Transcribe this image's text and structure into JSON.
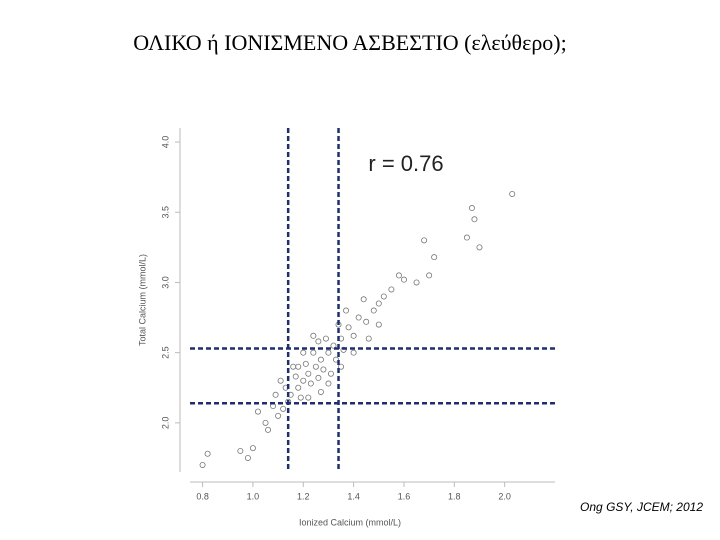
{
  "chart_data": {
    "type": "scatter",
    "title": "ΟΛΙΚΟ ή ΙΟΝΙΣΜΕΝΟ ΑΣΒΕΣΤΙΟ (ελεύθερο);",
    "annotation": "r = 0.76",
    "citation": "Ong  GSY, JCEM; 2012",
    "xlabel": "Ionized Calcium (mmol/L)",
    "ylabel": "Total Calcium (mmol/L)",
    "color": "#777777",
    "xlim": [
      0.75,
      2.2
    ],
    "ylim": [
      1.65,
      4.1
    ],
    "xticks": [
      0.8,
      {
        "value": 1,
        "label": "1.0"
      },
      1.2,
      1.4,
      1.6,
      1.8,
      {
        "value": 2,
        "label": "2.0"
      }
    ],
    "yticks": [
      {
        "value": 2,
        "label": "2.0"
      },
      2.5,
      {
        "value": 3,
        "label": "3.0"
      },
      3.5,
      {
        "value": 4,
        "label": "4.0"
      }
    ],
    "reference_lines": {
      "x": [
        1.14,
        1.34
      ],
      "y": [
        2.14,
        2.53
      ],
      "color": "#1f2f6e"
    },
    "x": [
      1.15,
      1.18,
      1.2,
      1.22,
      1.25,
      1.27,
      1.3,
      1.32,
      1.35,
      1.23,
      1.26,
      1.28,
      1.21,
      1.24,
      1.19,
      1.17,
      1.29,
      1.33,
      1.31,
      1.36,
      1.38,
      1.4,
      1.42,
      1.45,
      1.48,
      1.5,
      1.52,
      1.55,
      1.12,
      1.1,
      1.08,
      1.05,
      1.13,
      1.16,
      1.14,
      1.2,
      1.26,
      1.34,
      1.44,
      1.58,
      1.06,
      1.09,
      1.02,
      1.11,
      1.27,
      1.3,
      1.35,
      1.4,
      1.46,
      1.5,
      1.22,
      1.18,
      1.24,
      1.37,
      0.8,
      0.82,
      0.95,
      0.98,
      1.0,
      2.03,
      1.87,
      1.88,
      1.9,
      1.85,
      1.68,
      1.7,
      1.65,
      1.6,
      1.72
    ],
    "y": [
      2.2,
      2.25,
      2.3,
      2.35,
      2.4,
      2.45,
      2.5,
      2.55,
      2.6,
      2.28,
      2.32,
      2.38,
      2.42,
      2.5,
      2.18,
      2.33,
      2.6,
      2.45,
      2.35,
      2.52,
      2.68,
      2.62,
      2.75,
      2.72,
      2.8,
      2.85,
      2.9,
      2.95,
      2.1,
      2.05,
      2.12,
      2.0,
      2.25,
      2.4,
      2.15,
      2.5,
      2.58,
      2.7,
      2.88,
      3.05,
      1.95,
      2.2,
      2.08,
      2.3,
      2.22,
      2.28,
      2.4,
      2.5,
      2.6,
      2.7,
      2.18,
      2.4,
      2.62,
      2.8,
      1.7,
      1.78,
      1.8,
      1.75,
      1.82,
      3.63,
      3.53,
      3.45,
      3.25,
      3.32,
      3.3,
      3.05,
      3.0,
      3.02,
      3.18
    ]
  }
}
